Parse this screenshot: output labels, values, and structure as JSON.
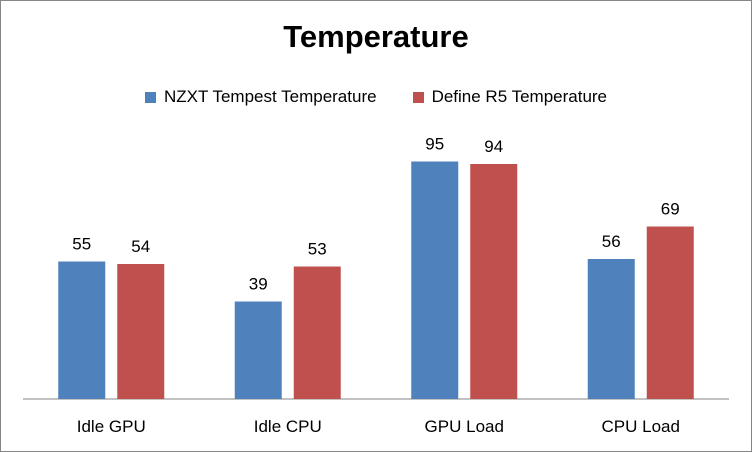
{
  "chart_data": {
    "type": "bar",
    "title": "Temperature",
    "categories": [
      "Idle GPU",
      "Idle CPU",
      "GPU Load",
      "CPU Load"
    ],
    "series": [
      {
        "name": "NZXT Tempest Temperature",
        "values": [
          55,
          39,
          95,
          56
        ],
        "color": "#4F81BD"
      },
      {
        "name": "Define R5 Temperature",
        "values": [
          54,
          53,
          94,
          69
        ],
        "color": "#C0504D"
      }
    ],
    "xlabel": "",
    "ylabel": "",
    "ylim": [
      0,
      100
    ],
    "grid": false,
    "legend_position": "top"
  }
}
